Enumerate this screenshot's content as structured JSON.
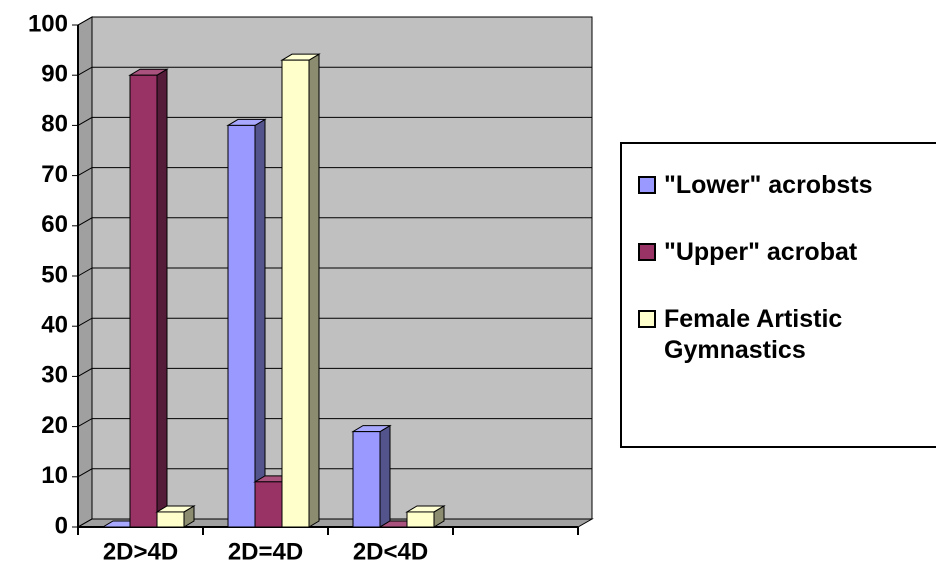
{
  "chart_data": {
    "type": "bar3d",
    "categories": [
      "2D>4D",
      "2D=4D",
      "2D<4D",
      null
    ],
    "series": [
      {
        "name": "\"Lower\" acrobsts",
        "color": "#9999ff",
        "values": [
          0,
          80,
          19,
          null
        ]
      },
      {
        "name": "\"Upper\" acrobat",
        "color": "#993366",
        "values": [
          90,
          9,
          0,
          null
        ]
      },
      {
        "name": "Female Artistic Gymnastics",
        "color": "#ffffcc",
        "values": [
          3,
          93,
          3,
          null
        ]
      }
    ],
    "ylim": [
      0,
      100
    ],
    "yticks": [
      0,
      10,
      20,
      30,
      40,
      50,
      60,
      70,
      80,
      90,
      100
    ],
    "grid": true,
    "legend": "right"
  }
}
